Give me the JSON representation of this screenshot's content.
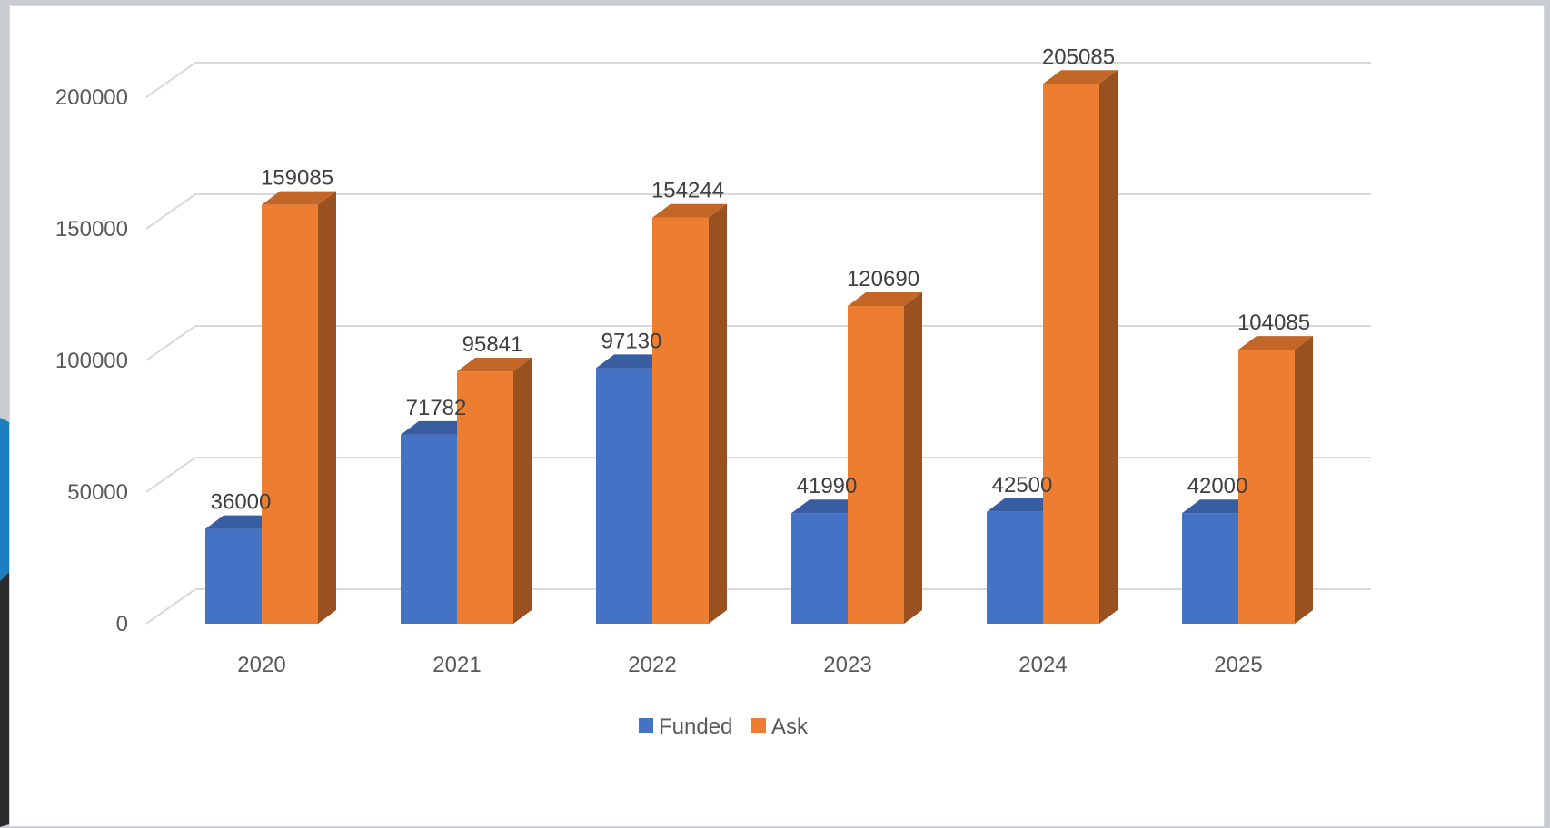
{
  "chart_data": {
    "type": "bar",
    "style": "3d-clustered-column",
    "categories": [
      "2020",
      "2021",
      "2022",
      "2023",
      "2024",
      "2025"
    ],
    "series": [
      {
        "name": "Funded",
        "color": "#4472c4",
        "values": [
          36000,
          71782,
          97130,
          41990,
          42500,
          42000
        ]
      },
      {
        "name": "Ask",
        "color": "#ed7d31",
        "values": [
          159085,
          95841,
          154244,
          120690,
          205085,
          104085
        ]
      }
    ],
    "title": "",
    "xlabel": "",
    "ylabel": "",
    "ylim": [
      0,
      200000
    ],
    "yticks": [
      0,
      50000,
      100000,
      150000,
      200000
    ],
    "grid": true,
    "legend_position": "bottom",
    "data_labels": true
  }
}
